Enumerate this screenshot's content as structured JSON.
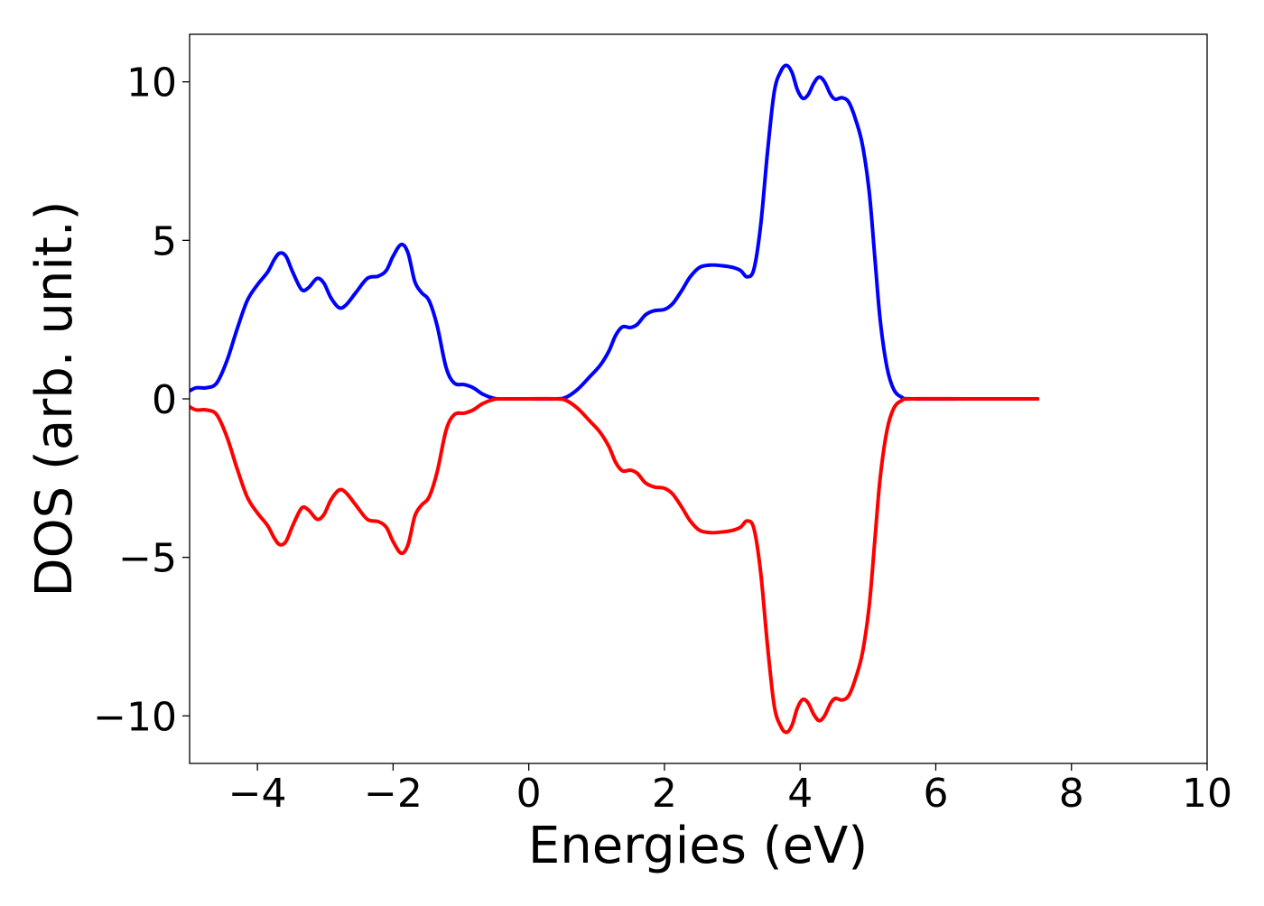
{
  "chart_data": {
    "type": "line",
    "title": "",
    "xlabel": "Energies (eV)",
    "ylabel": "DOS (arb. unit.)",
    "xlim": [
      -5,
      10
    ],
    "ylim": [
      -11.5,
      11.5
    ],
    "xticks": [
      -4,
      -2,
      0,
      2,
      4,
      6,
      8,
      10
    ],
    "yticks": [
      -10,
      -5,
      0,
      5,
      10
    ],
    "xtick_labels": [
      "−4",
      "−2",
      "0",
      "2",
      "4",
      "6",
      "8",
      "10"
    ],
    "ytick_labels": [
      "−10",
      "−5",
      "0",
      "5",
      "10"
    ],
    "grid": false,
    "legend": "none",
    "series": [
      {
        "color": "#0000ff",
        "points": [
          [
            -5.0,
            0.25
          ],
          [
            -4.9,
            0.35
          ],
          [
            -4.75,
            0.35
          ],
          [
            -4.6,
            0.5
          ],
          [
            -4.45,
            1.2
          ],
          [
            -4.3,
            2.2
          ],
          [
            -4.15,
            3.1
          ],
          [
            -4.0,
            3.6
          ],
          [
            -3.85,
            4.0
          ],
          [
            -3.75,
            4.4
          ],
          [
            -3.67,
            4.6
          ],
          [
            -3.58,
            4.5
          ],
          [
            -3.48,
            4.0
          ],
          [
            -3.35,
            3.45
          ],
          [
            -3.25,
            3.5
          ],
          [
            -3.12,
            3.8
          ],
          [
            -3.02,
            3.65
          ],
          [
            -2.92,
            3.2
          ],
          [
            -2.8,
            2.88
          ],
          [
            -2.7,
            2.95
          ],
          [
            -2.55,
            3.35
          ],
          [
            -2.38,
            3.8
          ],
          [
            -2.22,
            3.87
          ],
          [
            -2.1,
            4.05
          ],
          [
            -2.0,
            4.5
          ],
          [
            -1.88,
            4.87
          ],
          [
            -1.78,
            4.6
          ],
          [
            -1.68,
            3.7
          ],
          [
            -1.58,
            3.35
          ],
          [
            -1.47,
            3.1
          ],
          [
            -1.35,
            2.3
          ],
          [
            -1.22,
            1.0
          ],
          [
            -1.1,
            0.5
          ],
          [
            -0.95,
            0.45
          ],
          [
            -0.82,
            0.35
          ],
          [
            -0.68,
            0.15
          ],
          [
            -0.52,
            0.02
          ],
          [
            -0.4,
            0.0
          ],
          [
            0.0,
            0.0
          ],
          [
            0.4,
            0.0
          ],
          [
            0.55,
            0.05
          ],
          [
            0.72,
            0.3
          ],
          [
            0.9,
            0.7
          ],
          [
            1.05,
            1.05
          ],
          [
            1.18,
            1.5
          ],
          [
            1.28,
            2.0
          ],
          [
            1.38,
            2.27
          ],
          [
            1.5,
            2.25
          ],
          [
            1.6,
            2.35
          ],
          [
            1.72,
            2.65
          ],
          [
            1.85,
            2.78
          ],
          [
            2.0,
            2.82
          ],
          [
            2.12,
            3.0
          ],
          [
            2.25,
            3.4
          ],
          [
            2.38,
            3.85
          ],
          [
            2.52,
            4.15
          ],
          [
            2.68,
            4.22
          ],
          [
            2.85,
            4.2
          ],
          [
            3.0,
            4.15
          ],
          [
            3.12,
            4.05
          ],
          [
            3.22,
            3.85
          ],
          [
            3.32,
            4.1
          ],
          [
            3.42,
            5.5
          ],
          [
            3.52,
            7.8
          ],
          [
            3.62,
            9.7
          ],
          [
            3.72,
            10.35
          ],
          [
            3.8,
            10.52
          ],
          [
            3.88,
            10.3
          ],
          [
            3.96,
            9.75
          ],
          [
            4.04,
            9.48
          ],
          [
            4.12,
            9.6
          ],
          [
            4.2,
            9.95
          ],
          [
            4.28,
            10.15
          ],
          [
            4.36,
            10.0
          ],
          [
            4.45,
            9.6
          ],
          [
            4.52,
            9.45
          ],
          [
            4.62,
            9.5
          ],
          [
            4.72,
            9.35
          ],
          [
            4.82,
            8.8
          ],
          [
            4.92,
            8.0
          ],
          [
            5.02,
            6.5
          ],
          [
            5.1,
            4.5
          ],
          [
            5.18,
            2.5
          ],
          [
            5.28,
            1.0
          ],
          [
            5.38,
            0.3
          ],
          [
            5.5,
            0.05
          ],
          [
            5.65,
            0.0
          ],
          [
            6.5,
            0.0
          ],
          [
            7.5,
            0.0
          ]
        ]
      },
      {
        "color": "#ff0000",
        "points": [
          [
            -5.0,
            -0.25
          ],
          [
            -4.9,
            -0.35
          ],
          [
            -4.75,
            -0.35
          ],
          [
            -4.6,
            -0.5
          ],
          [
            -4.45,
            -1.2
          ],
          [
            -4.3,
            -2.2
          ],
          [
            -4.15,
            -3.1
          ],
          [
            -4.0,
            -3.6
          ],
          [
            -3.85,
            -4.0
          ],
          [
            -3.75,
            -4.4
          ],
          [
            -3.67,
            -4.6
          ],
          [
            -3.58,
            -4.5
          ],
          [
            -3.48,
            -4.0
          ],
          [
            -3.35,
            -3.45
          ],
          [
            -3.25,
            -3.5
          ],
          [
            -3.12,
            -3.8
          ],
          [
            -3.02,
            -3.65
          ],
          [
            -2.92,
            -3.2
          ],
          [
            -2.8,
            -2.88
          ],
          [
            -2.7,
            -2.95
          ],
          [
            -2.55,
            -3.35
          ],
          [
            -2.38,
            -3.8
          ],
          [
            -2.22,
            -3.87
          ],
          [
            -2.1,
            -4.05
          ],
          [
            -2.0,
            -4.5
          ],
          [
            -1.88,
            -4.87
          ],
          [
            -1.78,
            -4.6
          ],
          [
            -1.68,
            -3.7
          ],
          [
            -1.58,
            -3.35
          ],
          [
            -1.47,
            -3.1
          ],
          [
            -1.35,
            -2.3
          ],
          [
            -1.22,
            -1.0
          ],
          [
            -1.1,
            -0.5
          ],
          [
            -0.95,
            -0.45
          ],
          [
            -0.82,
            -0.35
          ],
          [
            -0.68,
            -0.15
          ],
          [
            -0.52,
            -0.02
          ],
          [
            -0.4,
            0.0
          ],
          [
            0.0,
            0.0
          ],
          [
            0.4,
            0.0
          ],
          [
            0.55,
            -0.05
          ],
          [
            0.72,
            -0.3
          ],
          [
            0.9,
            -0.7
          ],
          [
            1.05,
            -1.05
          ],
          [
            1.18,
            -1.5
          ],
          [
            1.28,
            -2.0
          ],
          [
            1.38,
            -2.27
          ],
          [
            1.5,
            -2.25
          ],
          [
            1.6,
            -2.35
          ],
          [
            1.72,
            -2.65
          ],
          [
            1.85,
            -2.78
          ],
          [
            2.0,
            -2.82
          ],
          [
            2.12,
            -3.0
          ],
          [
            2.25,
            -3.4
          ],
          [
            2.38,
            -3.85
          ],
          [
            2.52,
            -4.15
          ],
          [
            2.68,
            -4.22
          ],
          [
            2.85,
            -4.2
          ],
          [
            3.0,
            -4.15
          ],
          [
            3.12,
            -4.05
          ],
          [
            3.22,
            -3.85
          ],
          [
            3.32,
            -4.1
          ],
          [
            3.42,
            -5.5
          ],
          [
            3.52,
            -7.8
          ],
          [
            3.62,
            -9.7
          ],
          [
            3.72,
            -10.35
          ],
          [
            3.8,
            -10.52
          ],
          [
            3.88,
            -10.3
          ],
          [
            3.96,
            -9.75
          ],
          [
            4.04,
            -9.48
          ],
          [
            4.12,
            -9.6
          ],
          [
            4.2,
            -9.95
          ],
          [
            4.28,
            -10.15
          ],
          [
            4.36,
            -10.0
          ],
          [
            4.45,
            -9.6
          ],
          [
            4.52,
            -9.45
          ],
          [
            4.62,
            -9.5
          ],
          [
            4.72,
            -9.35
          ],
          [
            4.82,
            -8.8
          ],
          [
            4.92,
            -8.0
          ],
          [
            5.02,
            -6.5
          ],
          [
            5.1,
            -4.5
          ],
          [
            5.18,
            -2.5
          ],
          [
            5.28,
            -1.0
          ],
          [
            5.38,
            -0.3
          ],
          [
            5.5,
            -0.05
          ],
          [
            5.65,
            0.0
          ],
          [
            6.5,
            0.0
          ],
          [
            7.5,
            0.0
          ]
        ]
      }
    ]
  }
}
